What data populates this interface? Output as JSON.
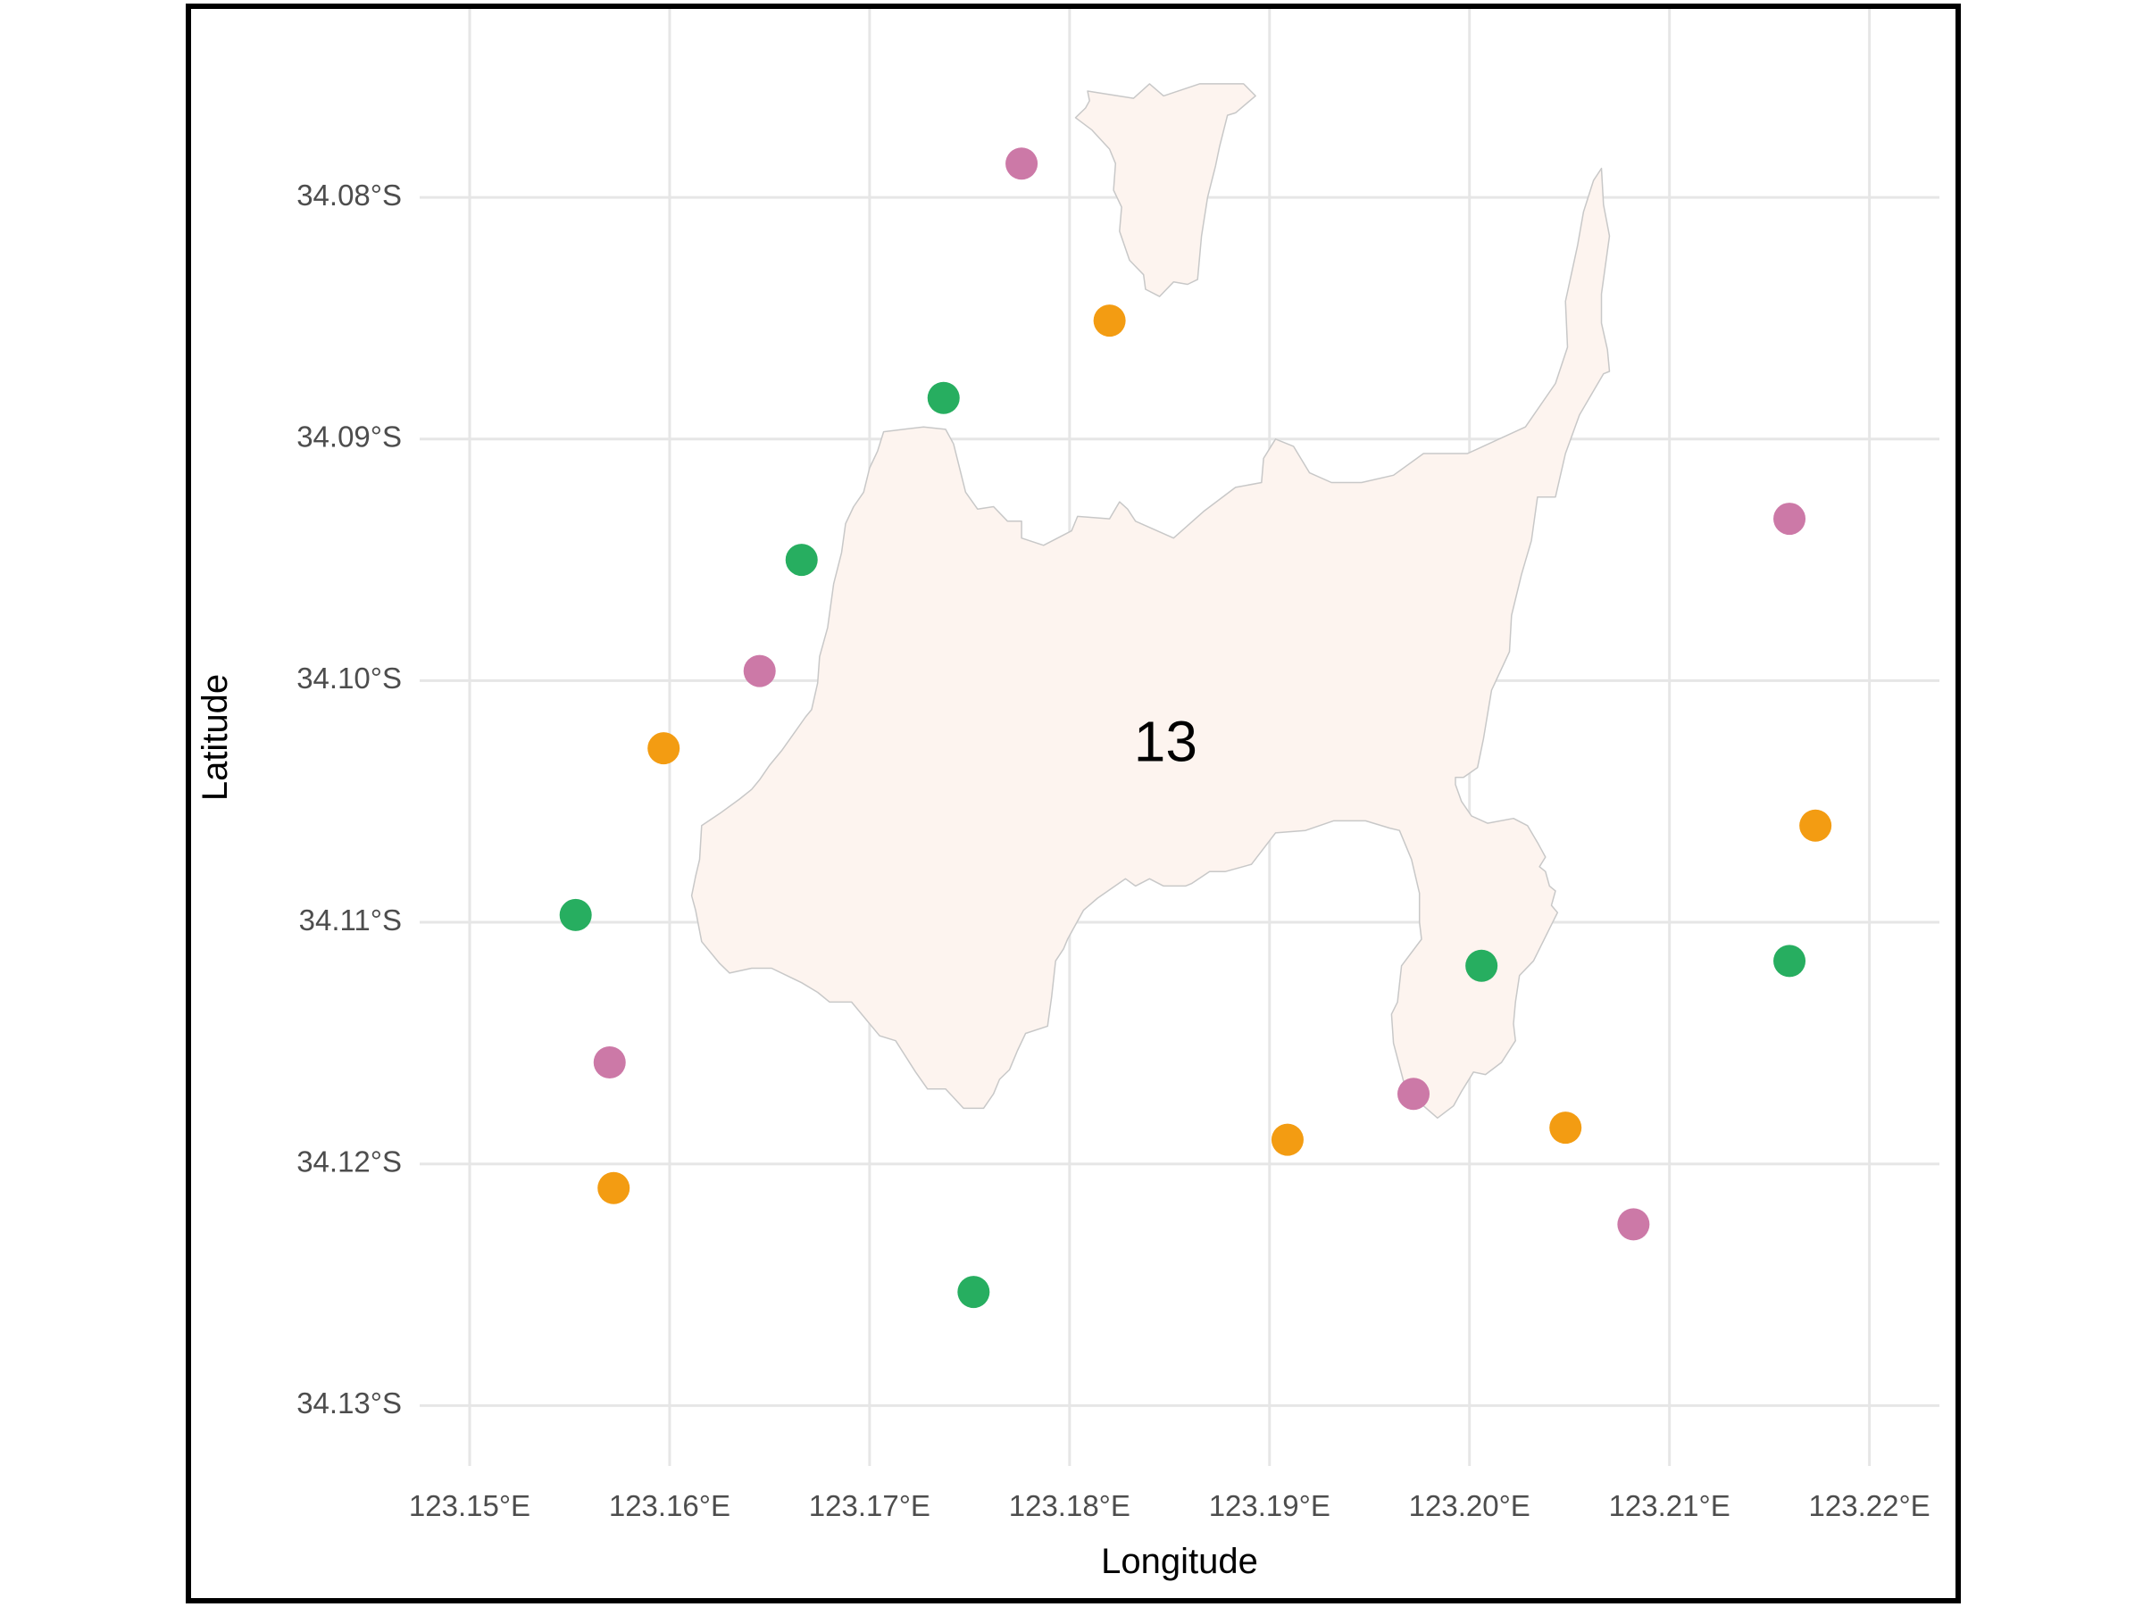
{
  "chart_data": {
    "type": "map",
    "xlabel": "Longitude",
    "ylabel": "Latitude",
    "xlim": [
      123.1475,
      123.2235
    ],
    "ylim": [
      -34.1325,
      -34.0722
    ],
    "x_ticks": [
      {
        "value": 123.15,
        "label": "123.15°E"
      },
      {
        "value": 123.16,
        "label": "123.16°E"
      },
      {
        "value": 123.17,
        "label": "123.17°E"
      },
      {
        "value": 123.18,
        "label": "123.18°E"
      },
      {
        "value": 123.19,
        "label": "123.19°E"
      },
      {
        "value": 123.2,
        "label": "123.20°E"
      },
      {
        "value": 123.21,
        "label": "123.21°E"
      },
      {
        "value": 123.22,
        "label": "123.22°E"
      }
    ],
    "y_ticks": [
      {
        "value": -34.08,
        "label": "34.08°S"
      },
      {
        "value": -34.09,
        "label": "34.09°S"
      },
      {
        "value": -34.1,
        "label": "34.10°S"
      },
      {
        "value": -34.11,
        "label": "34.11°S"
      },
      {
        "value": -34.12,
        "label": "34.12°S"
      },
      {
        "value": -34.13,
        "label": "34.13°S"
      }
    ],
    "grid": true,
    "region_label": {
      "text": "13",
      "lon": 123.1848,
      "lat": -34.1027
    },
    "land_fill": "#fdf4ef",
    "land_stroke": "#c8c8c8",
    "polygons": [
      [
        [
          123.1809,
          -34.0756
        ],
        [
          123.1832,
          -34.0759
        ],
        [
          123.184,
          -34.0753
        ],
        [
          123.1847,
          -34.0758
        ],
        [
          123.1865,
          -34.0753
        ],
        [
          123.1887,
          -34.0753
        ],
        [
          123.1893,
          -34.0758
        ],
        [
          123.1883,
          -34.0765
        ],
        [
          123.1879,
          -34.0766
        ],
        [
          123.1875,
          -34.0779
        ],
        [
          123.1873,
          -34.0787
        ],
        [
          123.1869,
          -34.08
        ],
        [
          123.1866,
          -34.0816
        ],
        [
          123.1865,
          -34.0825
        ],
        [
          123.1864,
          -34.0834
        ],
        [
          123.1859,
          -34.0836
        ],
        [
          123.1852,
          -34.0835
        ],
        [
          123.1845,
          -34.0841
        ],
        [
          123.1838,
          -34.0838
        ],
        [
          123.1837,
          -34.0832
        ],
        [
          123.183,
          -34.0826
        ],
        [
          123.1825,
          -34.0814
        ],
        [
          123.1826,
          -34.0804
        ],
        [
          123.1822,
          -34.0797
        ],
        [
          123.1823,
          -34.0786
        ],
        [
          123.182,
          -34.078
        ],
        [
          123.1811,
          -34.0772
        ],
        [
          123.1803,
          -34.0767
        ],
        [
          123.1808,
          -34.0763
        ],
        [
          123.181,
          -34.076
        ]
      ],
      [
        [
          123.1704,
          -34.0905
        ],
        [
          123.1707,
          -34.0897
        ],
        [
          123.1727,
          -34.0895
        ],
        [
          123.1738,
          -34.0896
        ],
        [
          123.1742,
          -34.0902
        ],
        [
          123.1748,
          -34.0922
        ],
        [
          123.1754,
          -34.0929
        ],
        [
          123.1762,
          -34.0928
        ],
        [
          123.1769,
          -34.0934
        ],
        [
          123.1776,
          -34.0934
        ],
        [
          123.1776,
          -34.0941
        ],
        [
          123.1787,
          -34.0944
        ],
        [
          123.1801,
          -34.0938
        ],
        [
          123.1804,
          -34.0932
        ],
        [
          123.182,
          -34.0933
        ],
        [
          123.1825,
          -34.0926
        ],
        [
          123.1829,
          -34.0929
        ],
        [
          123.1833,
          -34.0934
        ],
        [
          123.1852,
          -34.0941
        ],
        [
          123.1867,
          -34.093
        ],
        [
          123.1883,
          -34.092
        ],
        [
          123.1896,
          -34.0918
        ],
        [
          123.1897,
          -34.0908
        ],
        [
          123.1903,
          -34.09
        ],
        [
          123.1912,
          -34.0903
        ],
        [
          123.192,
          -34.0914
        ],
        [
          123.1931,
          -34.0918
        ],
        [
          123.1946,
          -34.0918
        ],
        [
          123.1962,
          -34.0915
        ],
        [
          123.1977,
          -34.0906
        ],
        [
          123.1999,
          -34.0906
        ],
        [
          123.2028,
          -34.0895
        ],
        [
          123.2043,
          -34.0877
        ],
        [
          123.2049,
          -34.0862
        ],
        [
          123.2048,
          -34.0843
        ],
        [
          123.2054,
          -34.082
        ],
        [
          123.2057,
          -34.0806
        ],
        [
          123.2062,
          -34.0793
        ],
        [
          123.2066,
          -34.0788
        ],
        [
          123.2067,
          -34.0803
        ],
        [
          123.207,
          -34.0816
        ],
        [
          123.2066,
          -34.084
        ],
        [
          123.2066,
          -34.0852
        ],
        [
          123.2069,
          -34.0863
        ],
        [
          123.207,
          -34.0872
        ],
        [
          123.2067,
          -34.0873
        ],
        [
          123.2055,
          -34.089
        ],
        [
          123.2048,
          -34.0906
        ],
        [
          123.2043,
          -34.0924
        ],
        [
          123.2034,
          -34.0924
        ],
        [
          123.2031,
          -34.0942
        ],
        [
          123.2026,
          -34.0956
        ],
        [
          123.2021,
          -34.0973
        ],
        [
          123.202,
          -34.0988
        ],
        [
          123.2011,
          -34.1004
        ],
        [
          123.2007,
          -34.1024
        ],
        [
          123.2004,
          -34.1036
        ],
        [
          123.1997,
          -34.104
        ],
        [
          123.1993,
          -34.104
        ],
        [
          123.1993,
          -34.1043
        ],
        [
          123.1996,
          -34.105
        ],
        [
          123.2001,
          -34.1056
        ],
        [
          123.2009,
          -34.1059
        ],
        [
          123.2022,
          -34.1057
        ],
        [
          123.2029,
          -34.106
        ],
        [
          123.2034,
          -34.1067
        ],
        [
          123.2038,
          -34.1073
        ],
        [
          123.2035,
          -34.1077
        ],
        [
          123.2038,
          -34.1079
        ],
        [
          123.204,
          -34.1085
        ],
        [
          123.2043,
          -34.1087
        ],
        [
          123.2041,
          -34.1093
        ],
        [
          123.2044,
          -34.1096
        ],
        [
          123.2041,
          -34.1101
        ],
        [
          123.2032,
          -34.1116
        ],
        [
          123.2025,
          -34.1122
        ],
        [
          123.2023,
          -34.1133
        ],
        [
          123.2022,
          -34.1142
        ],
        [
          123.2023,
          -34.1149
        ],
        [
          123.2016,
          -34.1158
        ],
        [
          123.2008,
          -34.1163
        ],
        [
          123.2002,
          -34.1162
        ],
        [
          123.1996,
          -34.117
        ],
        [
          123.1992,
          -34.1176
        ],
        [
          123.1984,
          -34.1181
        ],
        [
          123.1977,
          -34.1176
        ],
        [
          123.1969,
          -34.1172
        ],
        [
          123.1962,
          -34.115
        ],
        [
          123.1961,
          -34.1138
        ],
        [
          123.1964,
          -34.1133
        ],
        [
          123.1966,
          -34.1118
        ],
        [
          123.1976,
          -34.1107
        ],
        [
          123.1975,
          -34.11
        ],
        [
          123.1975,
          -34.1088
        ],
        [
          123.1971,
          -34.1074
        ],
        [
          123.1965,
          -34.1062
        ],
        [
          123.196,
          -34.1061
        ],
        [
          123.1948,
          -34.1058
        ],
        [
          123.1932,
          -34.1058
        ],
        [
          123.1918,
          -34.1062
        ],
        [
          123.1903,
          -34.1063
        ],
        [
          123.1891,
          -34.1076
        ],
        [
          123.1878,
          -34.1079
        ],
        [
          123.187,
          -34.1079
        ],
        [
          123.1861,
          -34.1084
        ],
        [
          123.1858,
          -34.1085
        ],
        [
          123.1854,
          -34.1085
        ],
        [
          123.1847,
          -34.1085
        ],
        [
          123.184,
          -34.1082
        ],
        [
          123.1833,
          -34.1085
        ],
        [
          123.1828,
          -34.1082
        ],
        [
          123.1814,
          -34.109
        ],
        [
          123.1807,
          -34.1095
        ],
        [
          123.1799,
          -34.1107
        ],
        [
          123.1797,
          -34.1111
        ],
        [
          123.1793,
          -34.1116
        ],
        [
          123.1791,
          -34.1131
        ],
        [
          123.1789,
          -34.1143
        ],
        [
          123.1778,
          -34.1146
        ],
        [
          123.1774,
          -34.1153
        ],
        [
          123.177,
          -34.1161
        ],
        [
          123.1765,
          -34.1165
        ],
        [
          123.1762,
          -34.1171
        ],
        [
          123.1757,
          -34.1177
        ],
        [
          123.1747,
          -34.1177
        ],
        [
          123.1738,
          -34.1169
        ],
        [
          123.1729,
          -34.1169
        ],
        [
          123.1723,
          -34.1162
        ],
        [
          123.1713,
          -34.1149
        ],
        [
          123.1705,
          -34.1147
        ],
        [
          123.17,
          -34.1142
        ],
        [
          123.1691,
          -34.1133
        ],
        [
          123.168,
          -34.1133
        ],
        [
          123.1674,
          -34.1129
        ],
        [
          123.1666,
          -34.1125
        ],
        [
          123.1651,
          -34.1119
        ],
        [
          123.1641,
          -34.1119
        ],
        [
          123.163,
          -34.1121
        ],
        [
          123.1625,
          -34.1117
        ],
        [
          123.1616,
          -34.1108
        ],
        [
          123.1613,
          -34.1095
        ],
        [
          123.1611,
          -34.1089
        ],
        [
          123.1613,
          -34.1081
        ],
        [
          123.1615,
          -34.1074
        ],
        [
          123.1616,
          -34.106
        ],
        [
          123.1625,
          -34.1055
        ],
        [
          123.1635,
          -34.1049
        ],
        [
          123.1641,
          -34.1045
        ],
        [
          123.1645,
          -34.1041
        ],
        [
          123.165,
          -34.1035
        ],
        [
          123.1656,
          -34.1029
        ],
        [
          123.1662,
          -34.1022
        ],
        [
          123.1668,
          -34.1015
        ],
        [
          123.1671,
          -34.1012
        ],
        [
          123.1674,
          -34.1001
        ],
        [
          123.1675,
          -34.099
        ],
        [
          123.1679,
          -34.0978
        ],
        [
          123.1682,
          -34.096
        ],
        [
          123.1686,
          -34.0947
        ],
        [
          123.1688,
          -34.0935
        ],
        [
          123.1692,
          -34.0928
        ],
        [
          123.1697,
          -34.0922
        ],
        [
          123.17,
          -34.0912
        ]
      ]
    ],
    "points": [
      {
        "lon": 123.1776,
        "lat": -34.0786,
        "color": "#cc79a7"
      },
      {
        "lon": 123.182,
        "lat": -34.0851,
        "color": "#f39c12"
      },
      {
        "lon": 123.1737,
        "lat": -34.0883,
        "color": "#27ae60"
      },
      {
        "lon": 123.1666,
        "lat": -34.095,
        "color": "#27ae60"
      },
      {
        "lon": 123.1645,
        "lat": -34.0996,
        "color": "#cc79a7"
      },
      {
        "lon": 123.1597,
        "lat": -34.1028,
        "color": "#f39c12"
      },
      {
        "lon": 123.1553,
        "lat": -34.1097,
        "color": "#27ae60"
      },
      {
        "lon": 123.157,
        "lat": -34.1158,
        "color": "#cc79a7"
      },
      {
        "lon": 123.1572,
        "lat": -34.121,
        "color": "#f39c12"
      },
      {
        "lon": 123.1752,
        "lat": -34.1253,
        "color": "#27ae60"
      },
      {
        "lon": 123.1909,
        "lat": -34.119,
        "color": "#f39c12"
      },
      {
        "lon": 123.1972,
        "lat": -34.1171,
        "color": "#cc79a7"
      },
      {
        "lon": 123.2006,
        "lat": -34.1118,
        "color": "#27ae60"
      },
      {
        "lon": 123.2048,
        "lat": -34.1185,
        "color": "#f39c12"
      },
      {
        "lon": 123.2082,
        "lat": -34.1225,
        "color": "#cc79a7"
      },
      {
        "lon": 123.216,
        "lat": -34.0933,
        "color": "#cc79a7"
      },
      {
        "lon": 123.2173,
        "lat": -34.106,
        "color": "#f39c12"
      },
      {
        "lon": 123.216,
        "lat": -34.1116,
        "color": "#27ae60"
      }
    ]
  }
}
